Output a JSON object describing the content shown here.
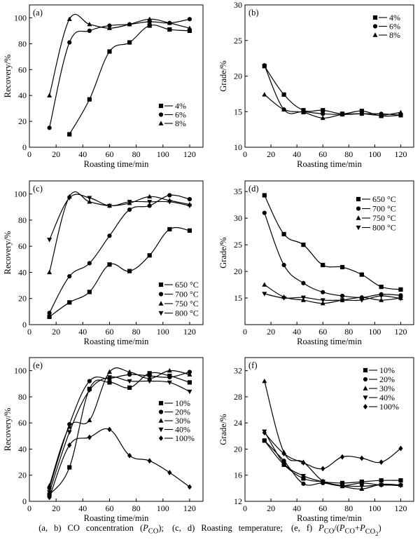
{
  "caption": {
    "text": "(a, b) CO concentration (PCO); (c, d) Roasting temperature; (e, f) PCO/(PCO+PCO2)"
  },
  "chart_data": [
    {
      "panel": "(a)",
      "type": "line",
      "ylabel": "Recovery/%",
      "xlabel": "Roasting time/min",
      "xlim": [
        0,
        130
      ],
      "ylim": [
        0,
        110
      ],
      "xticks": [
        0,
        20,
        40,
        60,
        80,
        100,
        120
      ],
      "yticks": [
        0,
        20,
        40,
        60,
        80,
        100
      ],
      "legend": "lower-right",
      "series": [
        {
          "name": "4%",
          "marker": "square",
          "x": [
            30,
            45,
            60,
            75,
            90,
            105,
            120
          ],
          "values": [
            10,
            37,
            74,
            81,
            94,
            91,
            90
          ]
        },
        {
          "name": "6%",
          "marker": "circle",
          "x": [
            15,
            30,
            45,
            60,
            75,
            90,
            105,
            120
          ],
          "values": [
            15,
            81,
            90,
            94,
            95,
            97,
            96,
            99
          ]
        },
        {
          "name": "8%",
          "marker": "triangle",
          "x": [
            15,
            30,
            45,
            60,
            75,
            90,
            105,
            120
          ],
          "values": [
            40,
            99,
            95,
            92,
            95,
            99,
            96,
            92
          ]
        }
      ]
    },
    {
      "panel": "(b)",
      "type": "line",
      "ylabel": "Grade/%",
      "xlabel": "Roasting time/min",
      "xlim": [
        0,
        130
      ],
      "ylim": [
        10,
        30
      ],
      "xticks": [
        0,
        20,
        40,
        60,
        80,
        100,
        120
      ],
      "yticks": [
        10,
        15,
        20,
        25,
        30
      ],
      "legend": "top-right",
      "series": [
        {
          "name": "4%",
          "marker": "square",
          "x": [
            15,
            30,
            45,
            60,
            75,
            90,
            105,
            120
          ],
          "values": [
            21.4,
            17.4,
            15.2,
            15.2,
            14.7,
            15.1,
            14.4,
            14.5
          ]
        },
        {
          "name": "6%",
          "marker": "circle",
          "x": [
            15,
            30,
            45,
            60,
            75,
            90,
            105,
            120
          ],
          "values": [
            21.5,
            15.3,
            15.0,
            14.7,
            14.6,
            14.7,
            14.7,
            14.5
          ]
        },
        {
          "name": "8%",
          "marker": "triangle",
          "x": [
            15,
            30,
            45,
            60,
            75,
            90,
            105,
            120
          ],
          "values": [
            17.4,
            15.3,
            14.9,
            14.1,
            14.6,
            14.7,
            14.5,
            14.9
          ]
        }
      ]
    },
    {
      "panel": "(c)",
      "type": "line",
      "ylabel": "Recovery/%",
      "xlabel": "Roasting time/min",
      "xlim": [
        0,
        130
      ],
      "ylim": [
        0,
        110
      ],
      "xticks": [
        0,
        20,
        40,
        60,
        80,
        100,
        120
      ],
      "yticks": [
        0,
        20,
        40,
        60,
        80,
        100
      ],
      "legend": "lower-right",
      "series": [
        {
          "name": "650 °C",
          "marker": "square",
          "x": [
            15,
            30,
            45,
            60,
            75,
            90,
            105,
            120
          ],
          "values": [
            6,
            17,
            25,
            46,
            41,
            53,
            73,
            72
          ]
        },
        {
          "name": "700 °C",
          "marker": "circle",
          "x": [
            15,
            30,
            45,
            60,
            75,
            90,
            105,
            120
          ],
          "values": [
            9,
            37,
            47,
            68,
            88,
            91,
            99,
            96
          ]
        },
        {
          "name": "750 °C",
          "marker": "triangle",
          "x": [
            15,
            30,
            45,
            60,
            75,
            90,
            105,
            120
          ],
          "values": [
            40,
            98,
            94,
            91,
            93,
            98,
            95,
            92
          ]
        },
        {
          "name": "800 °C",
          "marker": "triangle-down",
          "x": [
            15,
            30,
            45,
            60,
            75,
            90,
            105,
            120
          ],
          "values": [
            65,
            97,
            97,
            91,
            94,
            94,
            94,
            91
          ]
        }
      ]
    },
    {
      "panel": "(d)",
      "type": "line",
      "ylabel": "Grade/%",
      "xlabel": "Roasting time/min",
      "xlim": [
        0,
        130
      ],
      "ylim": [
        10,
        37
      ],
      "xticks": [
        0,
        20,
        40,
        60,
        80,
        100,
        120
      ],
      "yticks": [
        15,
        20,
        25,
        30,
        35
      ],
      "legend": "top-right",
      "series": [
        {
          "name": "650 °C",
          "marker": "square",
          "x": [
            15,
            30,
            45,
            60,
            75,
            90,
            105,
            120
          ],
          "values": [
            34.3,
            27.0,
            25.0,
            21.2,
            20.8,
            19.4,
            17.1,
            16.6
          ]
        },
        {
          "name": "700 °C",
          "marker": "circle",
          "x": [
            15,
            30,
            45,
            60,
            75,
            90,
            105,
            120
          ],
          "values": [
            31.0,
            21.2,
            17.8,
            16.1,
            15.4,
            15.1,
            15.7,
            15.5
          ]
        },
        {
          "name": "750 °C",
          "marker": "triangle",
          "x": [
            15,
            30,
            45,
            60,
            75,
            90,
            105,
            120
          ],
          "values": [
            17.5,
            15.2,
            14.6,
            14.0,
            14.6,
            15.1,
            14.6,
            15.0
          ]
        },
        {
          "name": "800 °C",
          "marker": "triangle-down",
          "x": [
            15,
            30,
            45,
            60,
            75,
            90,
            105,
            120
          ],
          "values": [
            15.8,
            15.0,
            15.1,
            14.6,
            14.6,
            14.6,
            15.4,
            14.9
          ]
        }
      ]
    },
    {
      "panel": "(e)",
      "type": "line",
      "ylabel": "Recovery/%",
      "xlabel": "Roasting time/min",
      "xlim": [
        0,
        130
      ],
      "ylim": [
        0,
        110
      ],
      "xticks": [
        0,
        20,
        40,
        60,
        80,
        100,
        120
      ],
      "yticks": [
        0,
        20,
        40,
        60,
        80,
        100
      ],
      "legend": "right",
      "series": [
        {
          "name": "10%",
          "marker": "square",
          "x": [
            15,
            30,
            45,
            60,
            75,
            90,
            105,
            120
          ],
          "values": [
            5,
            26,
            86,
            91,
            87,
            98,
            96,
            91
          ]
        },
        {
          "name": "20%",
          "marker": "circle",
          "x": [
            15,
            30,
            45,
            60,
            75,
            90,
            105,
            120
          ],
          "values": [
            10,
            59,
            92,
            94,
            97,
            96,
            95,
            99
          ]
        },
        {
          "name": "30%",
          "marker": "triangle",
          "x": [
            15,
            30,
            45,
            60,
            75,
            90,
            105,
            120
          ],
          "values": [
            12,
            57,
            62,
            99,
            99,
            94,
            100,
            97
          ]
        },
        {
          "name": "40%",
          "marker": "triangle-down",
          "x": [
            15,
            30,
            45,
            60,
            75,
            90,
            105,
            120
          ],
          "values": [
            7,
            53,
            85,
            95,
            92,
            92,
            91,
            84
          ]
        },
        {
          "name": "100%",
          "marker": "diamond",
          "x": [
            15,
            30,
            45,
            60,
            75,
            90,
            105,
            120
          ],
          "values": [
            3,
            43,
            49,
            55,
            35,
            31,
            22,
            11
          ]
        }
      ]
    },
    {
      "panel": "(f)",
      "type": "line",
      "ylabel": "Grade/%",
      "xlabel": "Roasting time/min",
      "xlim": [
        0,
        130
      ],
      "ylim": [
        12,
        34
      ],
      "xticks": [
        0,
        20,
        40,
        60,
        80,
        100,
        120
      ],
      "yticks": [
        12,
        16,
        20,
        24,
        28,
        32
      ],
      "legend": "top-right",
      "series": [
        {
          "name": "10%",
          "marker": "square",
          "x": [
            15,
            30,
            45,
            60,
            75,
            90,
            105,
            120
          ],
          "values": [
            21.3,
            17.6,
            15.5,
            15.0,
            14.8,
            15.0,
            15.2,
            15.2
          ]
        },
        {
          "name": "20%",
          "marker": "circle",
          "x": [
            15,
            30,
            45,
            60,
            75,
            90,
            105,
            120
          ],
          "values": [
            21.3,
            18.2,
            14.7,
            14.8,
            14.4,
            14.8,
            14.5,
            14.5
          ]
        },
        {
          "name": "30%",
          "marker": "triangle",
          "x": [
            15,
            30,
            45,
            60,
            75,
            90,
            105,
            120
          ],
          "values": [
            30.4,
            19.5,
            18.0,
            15.1,
            14.3,
            13.9,
            14.6,
            14.5
          ]
        },
        {
          "name": "40%",
          "marker": "triangle-down",
          "x": [
            15,
            30,
            45,
            60,
            75,
            90,
            105,
            120
          ],
          "values": [
            22.7,
            17.8,
            15.9,
            15.0,
            14.4,
            14.3,
            14.5,
            14.4
          ]
        },
        {
          "name": "100%",
          "marker": "diamond",
          "x": [
            15,
            30,
            45,
            60,
            75,
            90,
            105,
            120
          ],
          "values": [
            22.5,
            19.3,
            17.9,
            17.0,
            18.8,
            18.6,
            18.0,
            20.1
          ]
        }
      ]
    }
  ]
}
